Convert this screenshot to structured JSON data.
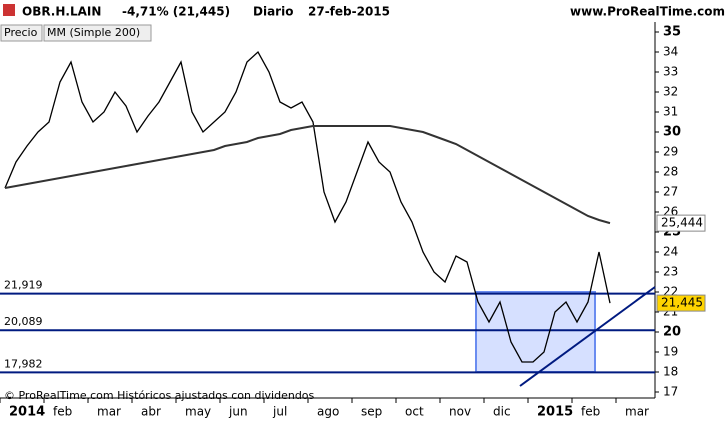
{
  "chart_data": {
    "type": "line",
    "symbol": "OBR.H.LAIN",
    "change": "-4,71% (21,445)",
    "period": "Diario",
    "date": "27-feb-2015",
    "site": "www.ProRealTime.com",
    "buttons": [
      "Precio",
      "MM (Simple 200)"
    ],
    "footnote": "© ProRealTime.com Históricos ajustados con dividendos",
    "categories": [
      "2014",
      null,
      null,
      null,
      "feb",
      null,
      null,
      null,
      "mar",
      null,
      null,
      null,
      "abr",
      null,
      null,
      null,
      "may",
      null,
      null,
      null,
      "jun",
      null,
      null,
      null,
      "jul",
      null,
      null,
      null,
      "ago",
      null,
      null,
      null,
      "sep",
      null,
      null,
      null,
      "oct",
      null,
      null,
      null,
      "nov",
      null,
      null,
      null,
      "dic",
      null,
      null,
      null,
      "2015",
      null,
      null,
      null,
      "feb",
      null,
      null,
      null,
      "mar"
    ],
    "series": [
      {
        "name": "Precio",
        "color": "#000000",
        "values": [
          27.2,
          28.5,
          29.3,
          30.0,
          30.5,
          32.5,
          33.5,
          31.5,
          30.5,
          31.0,
          32.0,
          31.3,
          30.0,
          30.8,
          31.5,
          32.5,
          33.5,
          31.0,
          30.0,
          30.5,
          31.0,
          32.0,
          33.5,
          34.0,
          33.0,
          31.5,
          31.2,
          31.5,
          30.5,
          27.0,
          25.5,
          26.5,
          28.0,
          29.5,
          28.5,
          28.0,
          26.5,
          25.5,
          24.0,
          23.0,
          22.5,
          23.8,
          23.5,
          21.5,
          20.5,
          21.5,
          19.5,
          18.5,
          18.5,
          19.0,
          21.0,
          21.5,
          20.5,
          21.5,
          24.0,
          21.445,
          null
        ]
      },
      {
        "name": "MM (Simple 200)",
        "color": "#333333",
        "values": [
          27.2,
          27.3,
          27.4,
          27.5,
          27.6,
          27.7,
          27.8,
          27.9,
          28.0,
          28.1,
          28.2,
          28.3,
          28.4,
          28.5,
          28.6,
          28.7,
          28.8,
          28.9,
          29.0,
          29.1,
          29.3,
          29.4,
          29.5,
          29.7,
          29.8,
          29.9,
          30.1,
          30.2,
          30.3,
          30.3,
          30.3,
          30.3,
          30.3,
          30.3,
          30.3,
          30.3,
          30.2,
          30.1,
          30.0,
          29.8,
          29.6,
          29.4,
          29.1,
          28.8,
          28.5,
          28.2,
          27.9,
          27.6,
          27.3,
          27.0,
          26.7,
          26.4,
          26.1,
          25.8,
          25.6,
          25.444,
          null
        ]
      }
    ],
    "ylim": [
      16.7,
      35.3
    ],
    "yticks": [
      17,
      18,
      19,
      20,
      21,
      22,
      23,
      24,
      25,
      26,
      27,
      28,
      29,
      30,
      31,
      32,
      33,
      34,
      35
    ],
    "levels": [
      {
        "value": 21.919,
        "label": "21,919"
      },
      {
        "value": 20.089,
        "label": "20,089"
      },
      {
        "value": 17.982,
        "label": "17,982"
      }
    ],
    "price_tags": [
      {
        "value": 25.444,
        "label": "25,444"
      },
      {
        "value": 21.445,
        "label": "21,445"
      }
    ]
  }
}
